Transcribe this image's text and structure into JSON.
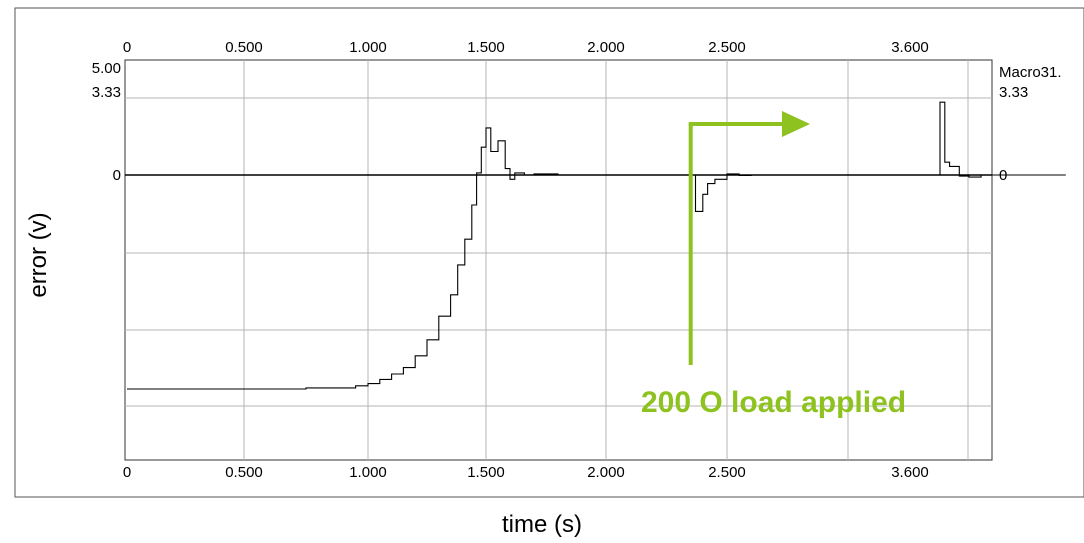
{
  "chart_data": {
    "type": "line",
    "title": "",
    "xlabel": "time (s)",
    "ylabel": "error (v)",
    "x_tick_labels": [
      "0",
      "0.500",
      "1.000",
      "1.500",
      "2.000",
      "2.500",
      "3.600"
    ],
    "y_tick_labels_left": [
      "5.00",
      "3.33",
      "0"
    ],
    "y_tick_labels_right": [
      "3.33",
      "0"
    ],
    "right_axis_label": "Macro31.",
    "grid": true,
    "accent_color": "#8dc21f",
    "series": [
      {
        "x": [
          0,
          0.25,
          0.5,
          0.75,
          0.95,
          1.0,
          1.05,
          1.1,
          1.15,
          1.2,
          1.25,
          1.3,
          1.35,
          1.38,
          1.41,
          1.44,
          1.46,
          1.48,
          1.5,
          1.52,
          1.55,
          1.58,
          1.6,
          1.62,
          1.66,
          1.7,
          1.8,
          1.95,
          2.1,
          2.2,
          2.3,
          2.35,
          2.37,
          2.4,
          2.42,
          2.45,
          2.5,
          2.55,
          2.6,
          2.7,
          2.8,
          2.9,
          3.0,
          3.1,
          3.2,
          3.3,
          3.35,
          3.38,
          3.4,
          3.42,
          3.46,
          3.5,
          3.55,
          3.6,
          3.7,
          3.9
        ],
        "y": [
          -10.0,
          -10.0,
          -10.0,
          -9.95,
          -9.85,
          -9.75,
          -9.55,
          -9.3,
          -9.0,
          -8.45,
          -7.7,
          -6.6,
          -5.6,
          -4.2,
          -3.0,
          -1.4,
          0.1,
          1.3,
          2.2,
          1.1,
          1.6,
          0.3,
          -0.2,
          0.1,
          0.0,
          0.05,
          0.0,
          0.0,
          0.0,
          0.0,
          0.0,
          0.0,
          -1.7,
          -0.9,
          -0.4,
          -0.2,
          0.05,
          -0.02,
          0.0,
          0.0,
          0.0,
          0.0,
          0.0,
          0.0,
          0.0,
          0.0,
          0.0,
          3.4,
          0.6,
          0.4,
          -0.05,
          -0.1,
          0.0,
          0.0,
          0.0,
          0.0
        ]
      }
    ],
    "annotations": [
      {
        "text": "200 O load applied",
        "x_start": 2.35,
        "color": "#8dc21f"
      }
    ]
  }
}
